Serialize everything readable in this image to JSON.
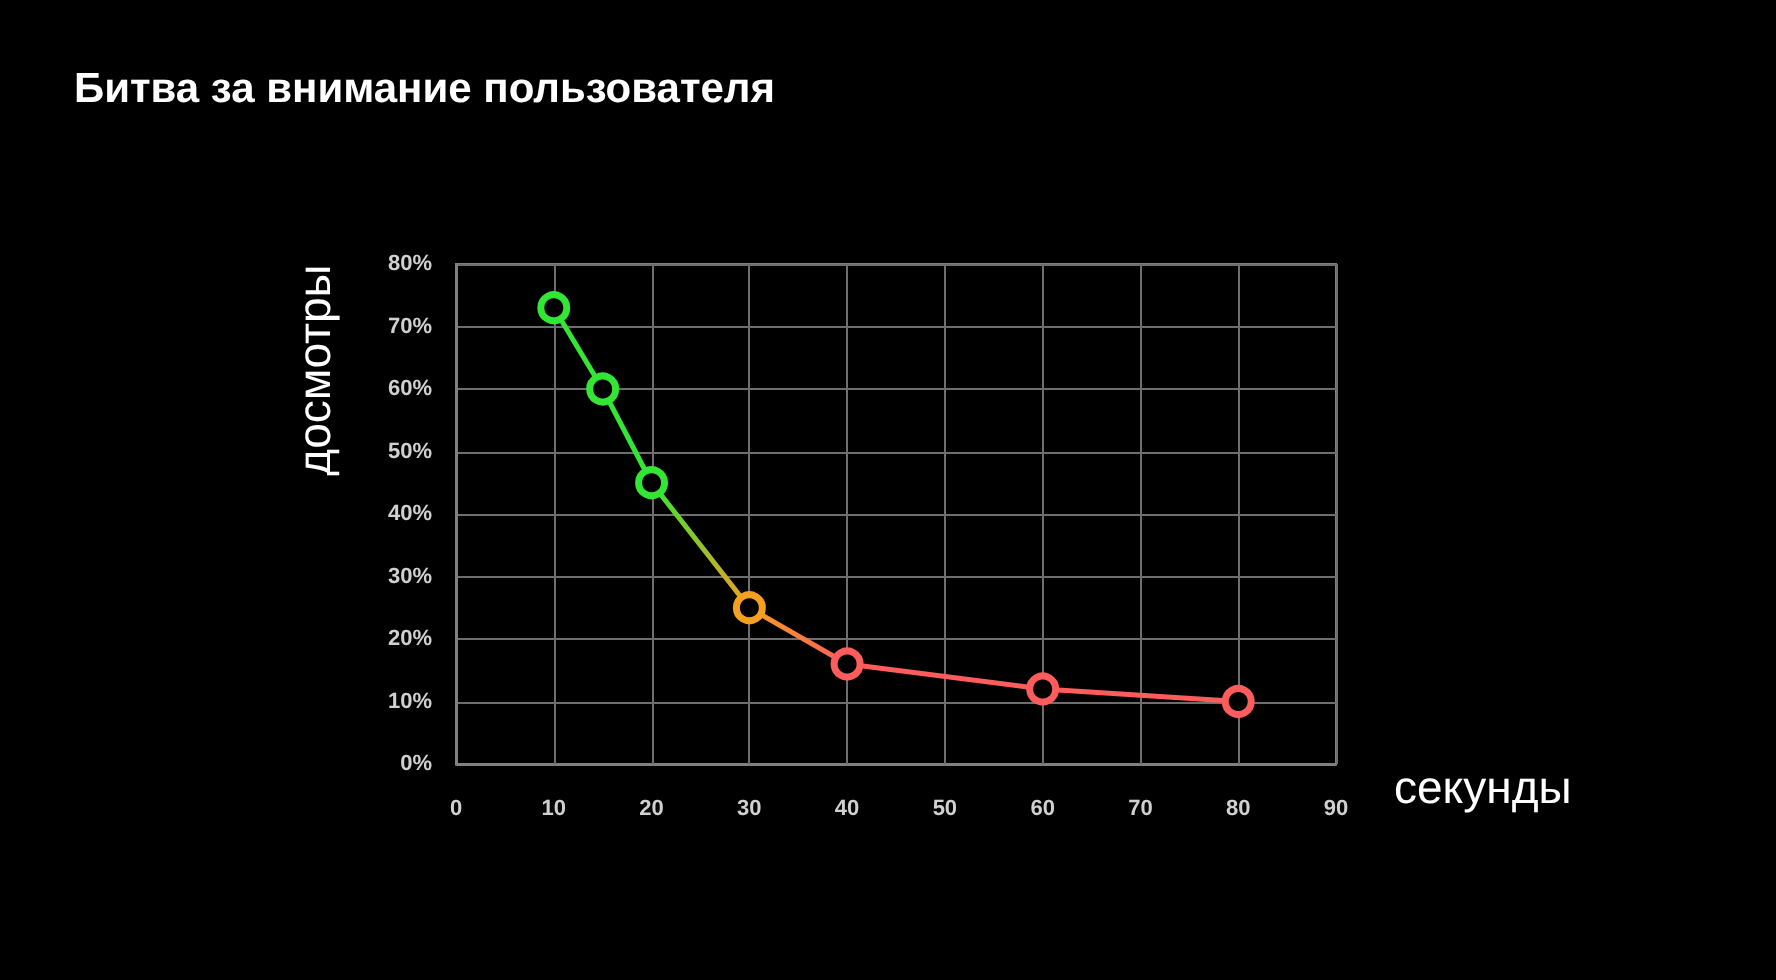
{
  "chart_data": {
    "type": "line",
    "title": "Битва за внимание пользователя",
    "xlabel": "секунды",
    "ylabel": "досмотры",
    "x": [
      10,
      15,
      20,
      30,
      40,
      60,
      80
    ],
    "series": [
      {
        "values": [
          73,
          60,
          45,
          25,
          16,
          12,
          10
        ],
        "colors": [
          "#33e633",
          "#33e633",
          "#33e633",
          "#f5a020",
          "#ff5c5c",
          "#ff5c5c",
          "#ff5c5c"
        ]
      }
    ],
    "xlim": [
      0,
      90
    ],
    "xticks": [
      0,
      10,
      20,
      30,
      40,
      50,
      60,
      70,
      80,
      90
    ],
    "ylim": [
      0,
      80
    ],
    "yticks": [
      {
        "value": 0,
        "label": "0%"
      },
      {
        "value": 10,
        "label": "10%"
      },
      {
        "value": 20,
        "label": "20%"
      },
      {
        "value": 30,
        "label": "30%"
      },
      {
        "value": 40,
        "label": "40%"
      },
      {
        "value": 50,
        "label": "50%"
      },
      {
        "value": 60,
        "label": "60%"
      },
      {
        "value": 70,
        "label": "70%"
      },
      {
        "value": 80,
        "label": "80%"
      }
    ],
    "grid": true,
    "marker": "circle",
    "line_style": "solid"
  }
}
